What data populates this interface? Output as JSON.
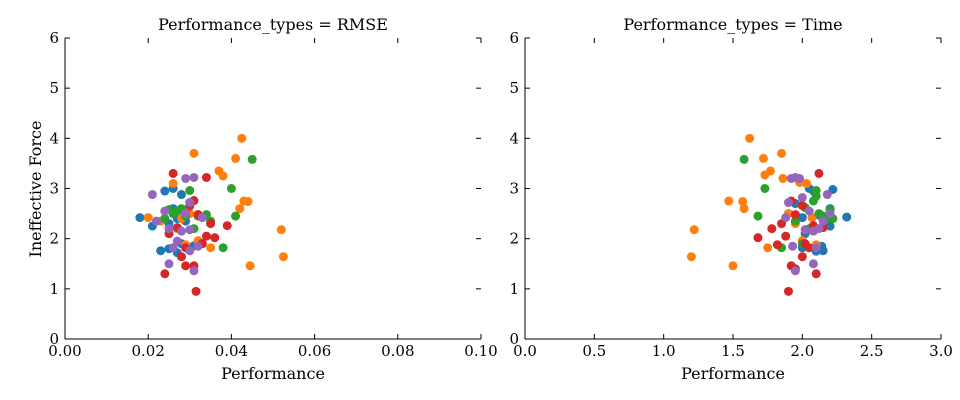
{
  "figure": {
    "ylabel": "Ineffective Force",
    "colors": [
      "#1f77b4",
      "#ff7f0e",
      "#2ca02c",
      "#d62728",
      "#9467bd"
    ]
  },
  "chart_data": [
    {
      "type": "scatter",
      "title": "Performance_types = RMSE",
      "xlabel": "Performance",
      "ylabel": "Ineffective Force",
      "xlim": [
        0,
        0.1
      ],
      "ylim": [
        0,
        6
      ],
      "xticks": [
        "0.00",
        "0.02",
        "0.04",
        "0.06",
        "0.08",
        "0.10"
      ],
      "xtick_values": [
        0,
        0.02,
        0.04,
        0.06,
        0.08,
        0.1
      ],
      "yticks": [
        "0",
        "1",
        "2",
        "3",
        "4",
        "5",
        "6"
      ],
      "ytick_values": [
        0,
        1,
        2,
        3,
        4,
        5,
        6
      ],
      "grid": false,
      "series": [
        {
          "color": "#1f77b4",
          "points": [
            [
              0.018,
              2.42
            ],
            [
              0.021,
              2.25
            ],
            [
              0.023,
              1.76
            ],
            [
              0.024,
              2.95
            ],
            [
              0.025,
              2.3
            ],
            [
              0.025,
              1.8
            ],
            [
              0.026,
              2.6
            ],
            [
              0.026,
              3.0
            ],
            [
              0.027,
              1.72
            ],
            [
              0.027,
              2.4
            ],
            [
              0.028,
              2.88
            ],
            [
              0.028,
              1.9
            ],
            [
              0.029,
              2.35
            ],
            [
              0.03,
              2.72
            ],
            [
              0.031,
              1.86
            ],
            [
              0.032,
              2.48
            ]
          ]
        },
        {
          "color": "#ff7f0e",
          "points": [
            [
              0.02,
              2.42
            ],
            [
              0.023,
              2.35
            ],
            [
              0.026,
              3.1
            ],
            [
              0.027,
              2.2
            ],
            [
              0.028,
              2.4
            ],
            [
              0.029,
              1.88
            ],
            [
              0.03,
              2.5
            ],
            [
              0.031,
              3.7
            ],
            [
              0.032,
              1.96
            ],
            [
              0.035,
              1.82
            ],
            [
              0.037,
              3.35
            ],
            [
              0.038,
              3.25
            ],
            [
              0.041,
              3.6
            ],
            [
              0.042,
              2.6
            ],
            [
              0.0425,
              4.0
            ],
            [
              0.043,
              2.75
            ],
            [
              0.044,
              2.74
            ],
            [
              0.0445,
              1.46
            ],
            [
              0.052,
              2.18
            ],
            [
              0.0525,
              1.64
            ]
          ]
        },
        {
          "color": "#2ca02c",
          "points": [
            [
              0.024,
              2.4
            ],
            [
              0.025,
              2.58
            ],
            [
              0.026,
              2.5
            ],
            [
              0.027,
              2.55
            ],
            [
              0.028,
              2.6
            ],
            [
              0.029,
              2.45
            ],
            [
              0.03,
              2.96
            ],
            [
              0.031,
              2.2
            ],
            [
              0.032,
              2.45
            ],
            [
              0.033,
              1.9
            ],
            [
              0.034,
              2.48
            ],
            [
              0.035,
              2.35
            ],
            [
              0.038,
              1.82
            ],
            [
              0.04,
              3.0
            ],
            [
              0.041,
              2.45
            ],
            [
              0.045,
              3.58
            ]
          ]
        },
        {
          "color": "#d62728",
          "points": [
            [
              0.024,
              1.3
            ],
            [
              0.025,
              2.1
            ],
            [
              0.026,
              3.3
            ],
            [
              0.027,
              2.22
            ],
            [
              0.028,
              1.64
            ],
            [
              0.029,
              1.82
            ],
            [
              0.029,
              1.46
            ],
            [
              0.03,
              2.65
            ],
            [
              0.031,
              2.76
            ],
            [
              0.031,
              1.46
            ],
            [
              0.0315,
              0.95
            ],
            [
              0.032,
              2.48
            ],
            [
              0.033,
              1.9
            ],
            [
              0.034,
              2.05
            ],
            [
              0.034,
              3.22
            ],
            [
              0.035,
              2.3
            ],
            [
              0.036,
              2.02
            ],
            [
              0.039,
              2.26
            ]
          ]
        },
        {
          "color": "#9467bd",
          "points": [
            [
              0.021,
              2.88
            ],
            [
              0.022,
              2.35
            ],
            [
              0.024,
              2.55
            ],
            [
              0.025,
              1.5
            ],
            [
              0.025,
              2.2
            ],
            [
              0.026,
              1.82
            ],
            [
              0.027,
              1.95
            ],
            [
              0.028,
              2.15
            ],
            [
              0.029,
              2.5
            ],
            [
              0.029,
              3.2
            ],
            [
              0.03,
              2.18
            ],
            [
              0.03,
              1.76
            ],
            [
              0.03,
              2.72
            ],
            [
              0.031,
              3.22
            ],
            [
              0.032,
              1.85
            ],
            [
              0.033,
              2.42
            ],
            [
              0.031,
              1.36
            ]
          ]
        }
      ]
    },
    {
      "type": "scatter",
      "title": "Performance_types = Time",
      "xlabel": "Performance",
      "ylabel": "",
      "xlim": [
        0,
        3
      ],
      "ylim": [
        0,
        6
      ],
      "xticks": [
        "0.0",
        "0.5",
        "1.0",
        "1.5",
        "2.0",
        "2.5",
        "3.0"
      ],
      "xtick_values": [
        0,
        0.5,
        1,
        1.5,
        2,
        2.5,
        3
      ],
      "yticks": [
        "0",
        "1",
        "2",
        "3",
        "4",
        "5",
        "6"
      ],
      "ytick_values": [
        0,
        1,
        2,
        3,
        4,
        5,
        6
      ],
      "grid": false,
      "series": [
        {
          "color": "#1f77b4",
          "points": [
            [
              1.9,
              2.5
            ],
            [
              1.95,
              2.7
            ],
            [
              2.0,
              2.42
            ],
            [
              2.02,
              2.1
            ],
            [
              2.05,
              3.0
            ],
            [
              2.08,
              2.95
            ],
            [
              2.1,
              1.75
            ],
            [
              2.12,
              2.47
            ],
            [
              2.15,
              1.76
            ],
            [
              2.18,
              2.3
            ],
            [
              2.2,
              2.25
            ],
            [
              2.22,
              2.98
            ],
            [
              2.32,
              2.43
            ],
            [
              2.2,
              2.6
            ],
            [
              2.14,
              1.85
            ],
            [
              2.0,
              1.82
            ]
          ]
        },
        {
          "color": "#ff7f0e",
          "points": [
            [
              1.2,
              1.64
            ],
            [
              1.22,
              2.18
            ],
            [
              1.47,
              2.75
            ],
            [
              1.5,
              1.46
            ],
            [
              1.57,
              2.74
            ],
            [
              1.58,
              2.6
            ],
            [
              1.62,
              4.0
            ],
            [
              1.72,
              3.6
            ],
            [
              1.73,
              3.27
            ],
            [
              1.75,
              1.82
            ],
            [
              1.77,
              3.35
            ],
            [
              1.85,
              3.7
            ],
            [
              1.86,
              3.2
            ],
            [
              1.9,
              2.5
            ],
            [
              1.95,
              2.3
            ],
            [
              1.98,
              3.12
            ],
            [
              2.0,
              1.96
            ],
            [
              2.03,
              3.1
            ],
            [
              2.07,
              2.42
            ],
            [
              2.1,
              1.88
            ]
          ]
        },
        {
          "color": "#2ca02c",
          "points": [
            [
              1.58,
              3.58
            ],
            [
              1.68,
              2.45
            ],
            [
              1.73,
              3.0
            ],
            [
              1.85,
              1.82
            ],
            [
              1.95,
              2.35
            ],
            [
              2.0,
              1.9
            ],
            [
              2.02,
              2.62
            ],
            [
              2.05,
              2.2
            ],
            [
              2.08,
              2.75
            ],
            [
              2.1,
              2.96
            ],
            [
              2.12,
              2.5
            ],
            [
              2.15,
              2.45
            ],
            [
              2.18,
              2.4
            ],
            [
              2.2,
              2.58
            ],
            [
              2.22,
              2.4
            ],
            [
              2.1,
              2.85
            ]
          ]
        },
        {
          "color": "#d62728",
          "points": [
            [
              1.9,
              0.95
            ],
            [
              1.92,
              1.46
            ],
            [
              1.95,
              1.4
            ],
            [
              2.0,
              1.64
            ],
            [
              2.05,
              1.82
            ],
            [
              2.1,
              1.3
            ],
            [
              1.68,
              2.02
            ],
            [
              1.78,
              2.2
            ],
            [
              1.82,
              1.88
            ],
            [
              1.85,
              2.3
            ],
            [
              1.88,
              2.05
            ],
            [
              1.92,
              2.75
            ],
            [
              1.95,
              2.48
            ],
            [
              2.0,
              2.66
            ],
            [
              2.02,
              1.9
            ],
            [
              2.08,
              2.26
            ],
            [
              2.12,
              3.3
            ],
            [
              2.15,
              2.22
            ]
          ]
        },
        {
          "color": "#9467bd",
          "points": [
            [
              1.9,
              2.72
            ],
            [
              1.92,
              3.2
            ],
            [
              1.95,
              1.36
            ],
            [
              1.95,
              3.22
            ],
            [
              1.98,
              3.2
            ],
            [
              1.93,
              1.85
            ],
            [
              2.0,
              2.82
            ],
            [
              2.02,
              2.18
            ],
            [
              2.05,
              2.55
            ],
            [
              2.08,
              1.5
            ],
            [
              2.1,
              1.82
            ],
            [
              2.12,
              2.2
            ],
            [
              2.15,
              2.35
            ],
            [
              2.18,
              2.88
            ],
            [
              2.2,
              2.5
            ],
            [
              1.88,
              2.42
            ],
            [
              2.08,
              2.15
            ]
          ]
        }
      ]
    }
  ]
}
